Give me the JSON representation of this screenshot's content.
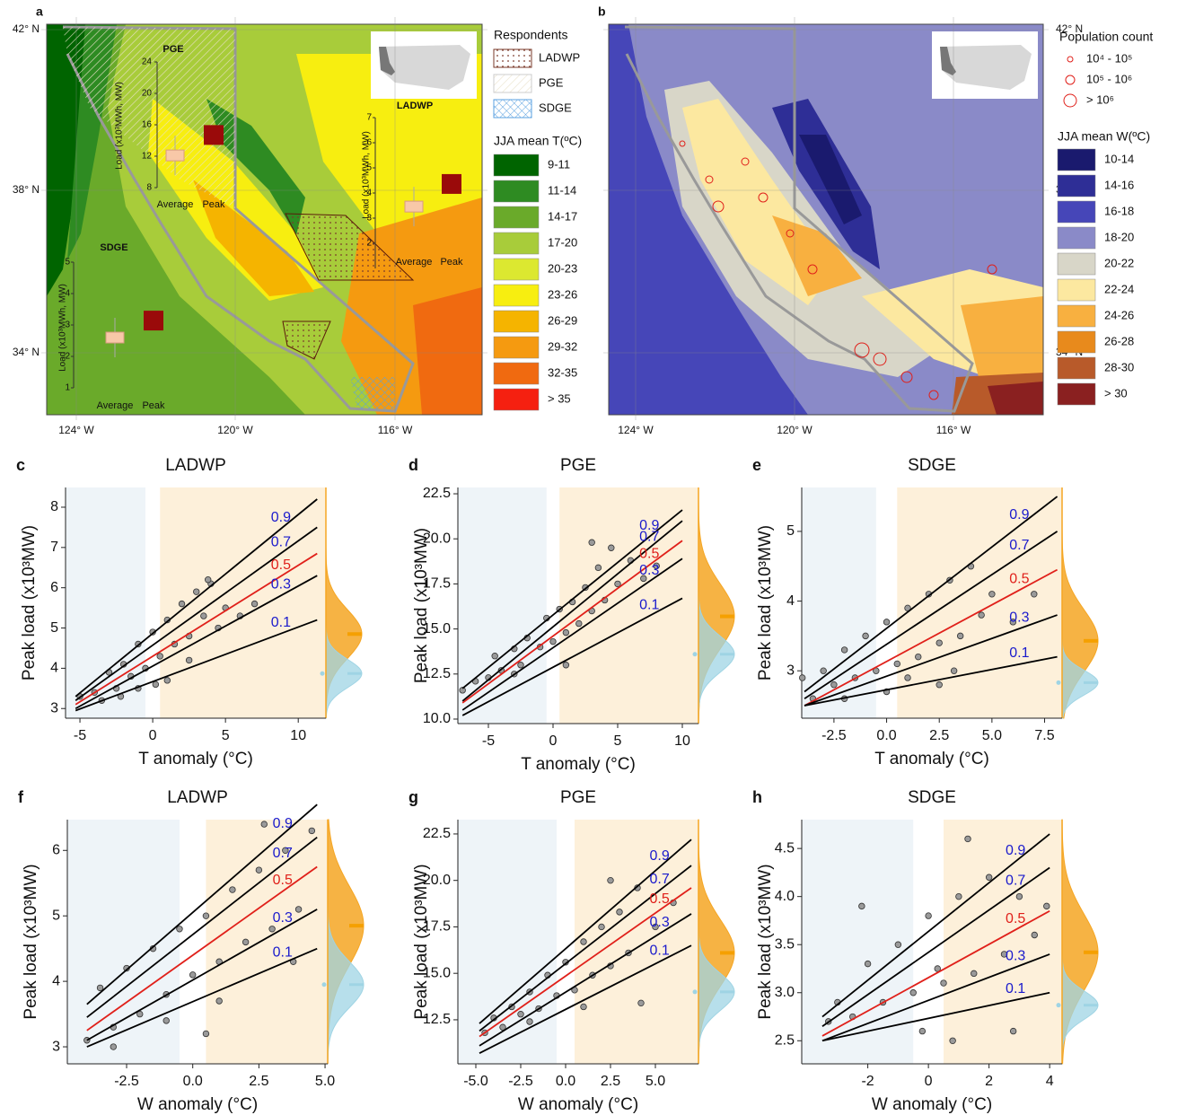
{
  "maps": {
    "a": {
      "label": "a",
      "lat_ticks": [
        "42° N",
        "38° N",
        "34° N"
      ],
      "lon_ticks": [
        "124° W",
        "120° W",
        "116° W"
      ],
      "respondents_title": "Respondents",
      "respondents": [
        "LADWP",
        "PGE",
        "SDGE"
      ],
      "legend_title": "JJA mean T(ºC)",
      "legend": [
        {
          "label": "9-11",
          "color": "#006400"
        },
        {
          "label": "11-14",
          "color": "#2e8b22"
        },
        {
          "label": "14-17",
          "color": "#6aaa2a"
        },
        {
          "label": "17-20",
          "color": "#a8cc3a"
        },
        {
          "label": "20-23",
          "color": "#dce830"
        },
        {
          "label": "23-26",
          "color": "#f7ee10"
        },
        {
          "label": "26-29",
          "color": "#f5b400"
        },
        {
          "label": "29-32",
          "color": "#f59a10"
        },
        {
          "label": "32-35",
          "color": "#f06a10"
        },
        {
          "label": "> 35",
          "color": "#f52010"
        }
      ],
      "insets": [
        {
          "title": "PGE",
          "ylabel": "Load (x10³MWh, MW)",
          "ylim": [
            8,
            24
          ],
          "yticks": [
            8,
            12,
            16,
            20,
            24
          ],
          "categories": [
            "Average",
            "Peak"
          ],
          "values": [
            12.1,
            14.7
          ]
        },
        {
          "title": "LADWP",
          "ylabel": "Load (x10³MWh, MW)",
          "ylim": [
            1,
            7
          ],
          "yticks": [
            2,
            3,
            4,
            5,
            6,
            7
          ],
          "categories": [
            "Average",
            "Peak"
          ],
          "values": [
            3.46,
            4.36
          ]
        },
        {
          "title": "SDGE",
          "ylabel": "Load (x10³MWh, MW)",
          "ylim": [
            1,
            5
          ],
          "yticks": [
            1,
            2,
            3,
            4,
            5
          ],
          "categories": [
            "Average",
            "Peak"
          ],
          "values": [
            2.6,
            3.14
          ]
        }
      ]
    },
    "b": {
      "label": "b",
      "lat_ticks": [
        "42° N",
        "38° N",
        "34° N"
      ],
      "lon_ticks": [
        "124° W",
        "120° W",
        "116° W"
      ],
      "population_title": "Population count",
      "population": [
        "10⁴ - 10⁵",
        "10⁵ - 10⁶",
        "> 10⁶"
      ],
      "legend_title": "JJA mean W(ºC)",
      "legend": [
        {
          "label": "10-14",
          "color": "#1a1a6e"
        },
        {
          "label": "14-16",
          "color": "#2e2e96"
        },
        {
          "label": "16-18",
          "color": "#4646b8"
        },
        {
          "label": "18-20",
          "color": "#8a8ac8"
        },
        {
          "label": "20-22",
          "color": "#d8d6c8"
        },
        {
          "label": "22-24",
          "color": "#fce8a0"
        },
        {
          "label": "24-26",
          "color": "#f8b040"
        },
        {
          "label": "26-28",
          "color": "#e88a1c"
        },
        {
          "label": "28-30",
          "color": "#b85a2a"
        },
        {
          "label": "> 30",
          "color": "#8a2020"
        }
      ]
    }
  },
  "chart_data": [
    {
      "type": "scatter",
      "label": "c",
      "title": "LADWP",
      "xlabel": "T anomaly (°C)",
      "ylabel": "Peak load (x10³MW)",
      "xlim": [
        -5.99,
        11.9
      ],
      "ylim": [
        2.76,
        8.49
      ],
      "xticks": [
        -5,
        0,
        5,
        10
      ],
      "yticks": [
        3,
        4,
        5,
        6,
        7,
        8
      ],
      "bounds": [
        -0.5,
        0.5
      ],
      "x": [
        -5,
        -4,
        -3.5,
        -3,
        -2.5,
        -2,
        -1.5,
        -1,
        -0.5,
        0,
        0.5,
        1,
        1.5,
        2,
        2.5,
        3,
        3.5,
        4,
        4.5,
        5,
        6,
        7,
        -1,
        1,
        2.5,
        3.8,
        0.2,
        -2.2
      ],
      "y": [
        3.3,
        3.4,
        3.2,
        3.9,
        3.5,
        4.1,
        3.8,
        4.6,
        4.0,
        4.9,
        4.3,
        5.2,
        4.6,
        5.6,
        4.8,
        5.9,
        5.3,
        6.1,
        5.0,
        5.5,
        5.3,
        5.6,
        3.5,
        3.7,
        4.2,
        6.2,
        3.6,
        3.3
      ],
      "lines": [
        {
          "name": "0.9",
          "color": "#000000",
          "label_color": "#1a1acc",
          "x": [
            -5.3,
            11.3
          ],
          "y": [
            3.3,
            8.2
          ]
        },
        {
          "name": "0.7",
          "color": "#000000",
          "label_color": "#1a1acc",
          "x": [
            -5.3,
            11.3
          ],
          "y": [
            3.2,
            7.5
          ]
        },
        {
          "name": "0.5",
          "color": "#e0201a",
          "label_color": "#e0201a",
          "x": [
            -5.3,
            11.3
          ],
          "y": [
            3.1,
            6.85
          ]
        },
        {
          "name": "0.3",
          "color": "#000000",
          "label_color": "#1a1acc",
          "x": [
            -5.3,
            11.3
          ],
          "y": [
            3.0,
            6.3
          ]
        },
        {
          "name": "0.1",
          "color": "#000000",
          "label_color": "#1a1acc",
          "x": [
            -5.3,
            11.3
          ],
          "y": [
            2.95,
            5.2
          ]
        }
      ],
      "marginal": {
        "peak_mean": 4.85,
        "peak_sd": 0.6,
        "average_mean": 3.87,
        "average_sd": 0.35
      }
    },
    {
      "type": "scatter",
      "label": "d",
      "title": "PGE",
      "xlabel": "T anomaly (°C)",
      "ylabel": "Peak load (x10³MW)",
      "xlim": [
        -7.36,
        11.25
      ],
      "ylim": [
        9.75,
        22.85
      ],
      "xticks": [
        -5,
        0,
        5,
        10
      ],
      "yticks": [
        {
          "value": 10,
          "label": "10.0"
        },
        12.5,
        {
          "value": 15,
          "label": "15.0"
        },
        17.5,
        {
          "value": 20,
          "label": "20.0"
        },
        22.5
      ],
      "bounds": [
        -0.5,
        0.5
      ],
      "x": [
        -7,
        -6,
        -5,
        -4.5,
        -4,
        -3,
        -2.5,
        -2,
        -1,
        -0.5,
        0,
        0.5,
        1,
        1.5,
        2,
        2.5,
        3,
        3.5,
        4,
        4.5,
        5,
        6,
        7,
        8,
        -3,
        1,
        3
      ],
      "y": [
        11.6,
        12.1,
        12.3,
        13.5,
        12.7,
        13.9,
        13.0,
        14.5,
        14.0,
        15.6,
        14.3,
        16.1,
        14.8,
        16.5,
        15.3,
        17.3,
        16.0,
        18.4,
        16.6,
        19.5,
        17.5,
        18.8,
        17.8,
        18.5,
        12.5,
        13.0,
        19.8
      ],
      "lines": [
        {
          "name": "0.9",
          "color": "#000000",
          "label_color": "#1a1acc",
          "x": [
            -7,
            10
          ],
          "y": [
            11.7,
            21.6
          ]
        },
        {
          "name": "0.7",
          "color": "#000000",
          "label_color": "#1a1acc",
          "x": [
            -7,
            10
          ],
          "y": [
            11.0,
            21.0
          ]
        },
        {
          "name": "0.5",
          "color": "#e0201a",
          "label_color": "#e0201a",
          "x": [
            -7,
            10
          ],
          "y": [
            10.9,
            19.9
          ]
        },
        {
          "name": "0.3",
          "color": "#000000",
          "label_color": "#1a1acc",
          "x": [
            -7,
            10
          ],
          "y": [
            10.5,
            18.9
          ]
        },
        {
          "name": "0.1",
          "color": "#000000",
          "label_color": "#1a1acc",
          "x": [
            -7,
            10
          ],
          "y": [
            10.2,
            16.7
          ]
        }
      ],
      "marginal": {
        "peak_mean": 15.7,
        "peak_sd": 1.8,
        "average_mean": 13.6,
        "average_sd": 1.0
      }
    },
    {
      "type": "scatter",
      "label": "e",
      "title": "SDGE",
      "xlabel": "T anomaly (°C)",
      "ylabel": "Peak load (x10³MW)",
      "xlim": [
        -4.03,
        8.33
      ],
      "ylim": [
        2.32,
        5.63
      ],
      "xticks": [
        -2.5,
        {
          "value": 0,
          "label": "0.0"
        },
        2.5,
        {
          "value": 5,
          "label": "5.0"
        },
        7.5
      ],
      "yticks": [
        3,
        4,
        5
      ],
      "bounds": [
        -0.5,
        0.5
      ],
      "x": [
        -4,
        -3.5,
        -3,
        -2.5,
        -2,
        -1.5,
        -1,
        -0.5,
        0,
        0.5,
        1,
        1.5,
        2,
        2.5,
        3,
        3.5,
        4,
        4.5,
        5,
        6,
        7,
        -2,
        0,
        1,
        2.5,
        3.2
      ],
      "y": [
        2.9,
        2.6,
        3.0,
        2.8,
        3.3,
        2.9,
        3.5,
        3.0,
        3.7,
        3.1,
        3.9,
        3.2,
        4.1,
        3.4,
        4.3,
        3.5,
        4.5,
        3.8,
        4.1,
        3.7,
        4.1,
        2.6,
        2.7,
        2.9,
        2.8,
        3.0
      ],
      "lines": [
        {
          "name": "0.9",
          "color": "#000000",
          "label_color": "#1a1acc",
          "x": [
            -3.9,
            8.1
          ],
          "y": [
            2.7,
            5.5
          ]
        },
        {
          "name": "0.7",
          "color": "#000000",
          "label_color": "#1a1acc",
          "x": [
            -3.9,
            8.1
          ],
          "y": [
            2.6,
            5.0
          ]
        },
        {
          "name": "0.5",
          "color": "#e0201a",
          "label_color": "#e0201a",
          "x": [
            -3.9,
            8.1
          ],
          "y": [
            2.5,
            4.45
          ]
        },
        {
          "name": "0.3",
          "color": "#000000",
          "label_color": "#1a1acc",
          "x": [
            -3.9,
            8.1
          ],
          "y": [
            2.5,
            3.8
          ]
        },
        {
          "name": "0.1",
          "color": "#000000",
          "label_color": "#1a1acc",
          "x": [
            -3.9,
            8.1
          ],
          "y": [
            2.5,
            3.2
          ]
        }
      ],
      "marginal": {
        "peak_mean": 3.43,
        "peak_sd": 0.45,
        "average_mean": 2.83,
        "average_sd": 0.18
      }
    },
    {
      "type": "scatter",
      "label": "f",
      "title": "LADWP",
      "xlabel": "W anomaly (°C)",
      "ylabel": "Peak load (x10³MW)",
      "xlim": [
        -4.74,
        5.1
      ],
      "ylim": [
        2.74,
        6.47
      ],
      "xticks": [
        -2.5,
        {
          "value": 0,
          "label": "0.0"
        },
        2.5,
        {
          "value": 5,
          "label": "5.0"
        }
      ],
      "yticks": [
        3,
        4,
        5,
        6
      ],
      "bounds": [
        -0.5,
        0.5
      ],
      "x": [
        -4,
        -3.5,
        -3,
        -2.5,
        -2,
        -1.5,
        -1,
        -0.5,
        0,
        0.5,
        1,
        1.5,
        2,
        2.5,
        3,
        3.5,
        4,
        4.5,
        -3,
        -1,
        1,
        2.7,
        0.5,
        3.8
      ],
      "y": [
        3.1,
        3.9,
        3.3,
        4.2,
        3.5,
        4.5,
        3.8,
        4.8,
        4.1,
        5.0,
        4.3,
        5.4,
        4.6,
        5.7,
        4.8,
        6.0,
        5.1,
        6.3,
        3.0,
        3.4,
        3.7,
        6.4,
        3.2,
        4.3
      ],
      "lines": [
        {
          "name": "0.9",
          "color": "#000000",
          "label_color": "#1a1acc",
          "x": [
            -4,
            4.7
          ],
          "y": [
            3.65,
            6.7
          ]
        },
        {
          "name": "0.7",
          "color": "#000000",
          "label_color": "#1a1acc",
          "x": [
            -4,
            4.7
          ],
          "y": [
            3.45,
            6.2
          ]
        },
        {
          "name": "0.5",
          "color": "#e0201a",
          "label_color": "#e0201a",
          "x": [
            -4,
            4.7
          ],
          "y": [
            3.25,
            5.75
          ]
        },
        {
          "name": "0.3",
          "color": "#000000",
          "label_color": "#1a1acc",
          "x": [
            -4,
            4.7
          ],
          "y": [
            3.1,
            5.1
          ]
        },
        {
          "name": "0.1",
          "color": "#000000",
          "label_color": "#1a1acc",
          "x": [
            -4,
            4.7
          ],
          "y": [
            3.0,
            4.5
          ]
        }
      ],
      "marginal": {
        "peak_mean": 4.85,
        "peak_sd": 0.6,
        "average_mean": 3.95,
        "average_sd": 0.35
      }
    },
    {
      "type": "scatter",
      "label": "g",
      "title": "PGE",
      "xlabel": "W anomaly (°C)",
      "ylabel": "Peak load (x10³MW)",
      "xlim": [
        -6.0,
        7.4
      ],
      "ylim": [
        10.13,
        23.27
      ],
      "xticks": [
        {
          "value": -5,
          "label": "-5.0"
        },
        -2.5,
        {
          "value": 0,
          "label": "0.0"
        },
        2.5,
        {
          "value": 5,
          "label": "5.0"
        }
      ],
      "yticks": [
        12.5,
        {
          "value": 15,
          "label": "15.0"
        },
        17.5,
        {
          "value": 20,
          "label": "20.0"
        },
        22.5
      ],
      "bounds": [
        -0.5,
        0.5
      ],
      "x": [
        -4.5,
        -4,
        -3.5,
        -3,
        -2.5,
        -2,
        -1.5,
        -1,
        -0.5,
        0,
        0.5,
        1,
        1.5,
        2,
        2.5,
        3,
        3.5,
        4,
        5,
        6,
        -2,
        1,
        2.5,
        4.2
      ],
      "y": [
        11.8,
        12.6,
        12.1,
        13.2,
        12.8,
        14.0,
        13.1,
        14.9,
        13.8,
        15.6,
        14.1,
        16.7,
        14.9,
        17.5,
        15.4,
        18.3,
        16.1,
        19.6,
        17.5,
        18.8,
        12.4,
        13.2,
        20.0,
        13.4
      ],
      "lines": [
        {
          "name": "0.9",
          "color": "#000000",
          "label_color": "#1a1acc",
          "x": [
            -4.8,
            7
          ],
          "y": [
            12.3,
            22.2
          ]
        },
        {
          "name": "0.7",
          "color": "#000000",
          "label_color": "#1a1acc",
          "x": [
            -4.8,
            7
          ],
          "y": [
            11.9,
            20.8
          ]
        },
        {
          "name": "0.5",
          "color": "#e0201a",
          "label_color": "#e0201a",
          "x": [
            -4.8,
            7
          ],
          "y": [
            11.6,
            19.6
          ]
        },
        {
          "name": "0.3",
          "color": "#000000",
          "label_color": "#1a1acc",
          "x": [
            -4.8,
            7
          ],
          "y": [
            11.1,
            18.2
          ]
        },
        {
          "name": "0.1",
          "color": "#000000",
          "label_color": "#1a1acc",
          "x": [
            -4.8,
            7
          ],
          "y": [
            10.7,
            16.5
          ]
        }
      ],
      "marginal": {
        "peak_mean": 16.1,
        "peak_sd": 1.8,
        "average_mean": 14.0,
        "average_sd": 1.0
      }
    },
    {
      "type": "scatter",
      "label": "h",
      "title": "SDGE",
      "xlabel": "W anomaly (°C)",
      "ylabel": "Peak load (x10³MW)",
      "xlim": [
        -4.18,
        4.41
      ],
      "ylim": [
        2.26,
        4.8
      ],
      "xticks": [
        -2,
        0,
        2,
        4
      ],
      "yticks": [
        2.5,
        {
          "value": 3,
          "label": "3.0"
        },
        3.5,
        {
          "value": 4,
          "label": "4.0"
        },
        4.5
      ],
      "bounds": [
        -0.5,
        0.5
      ],
      "x": [
        -3.3,
        -3,
        -2.5,
        -2,
        -1.5,
        -1,
        -0.5,
        0,
        0.5,
        1,
        1.5,
        2,
        2.5,
        3,
        3.5,
        3.9,
        -2.2,
        -0.2,
        0.8,
        1.3,
        2.8,
        0.3
      ],
      "y": [
        2.7,
        2.9,
        2.75,
        3.3,
        2.9,
        3.5,
        3.0,
        3.8,
        3.1,
        4.0,
        3.2,
        4.2,
        3.4,
        4.0,
        3.6,
        3.9,
        3.9,
        2.6,
        2.5,
        4.6,
        2.6,
        3.25
      ],
      "lines": [
        {
          "name": "0.9",
          "color": "#000000",
          "label_color": "#1a1acc",
          "x": [
            -3.5,
            4
          ],
          "y": [
            2.75,
            4.65
          ]
        },
        {
          "name": "0.7",
          "color": "#000000",
          "label_color": "#1a1acc",
          "x": [
            -3.5,
            4
          ],
          "y": [
            2.65,
            4.3
          ]
        },
        {
          "name": "0.5",
          "color": "#e0201a",
          "label_color": "#e0201a",
          "x": [
            -3.5,
            4
          ],
          "y": [
            2.55,
            3.85
          ]
        },
        {
          "name": "0.3",
          "color": "#000000",
          "label_color": "#1a1acc",
          "x": [
            -3.5,
            4
          ],
          "y": [
            2.5,
            3.4
          ]
        },
        {
          "name": "0.1",
          "color": "#000000",
          "label_color": "#1a1acc",
          "x": [
            -3.5,
            4
          ],
          "y": [
            2.5,
            3.0
          ]
        }
      ],
      "marginal": {
        "peak_mean": 3.42,
        "peak_sd": 0.4,
        "average_mean": 2.87,
        "average_sd": 0.15
      }
    }
  ]
}
